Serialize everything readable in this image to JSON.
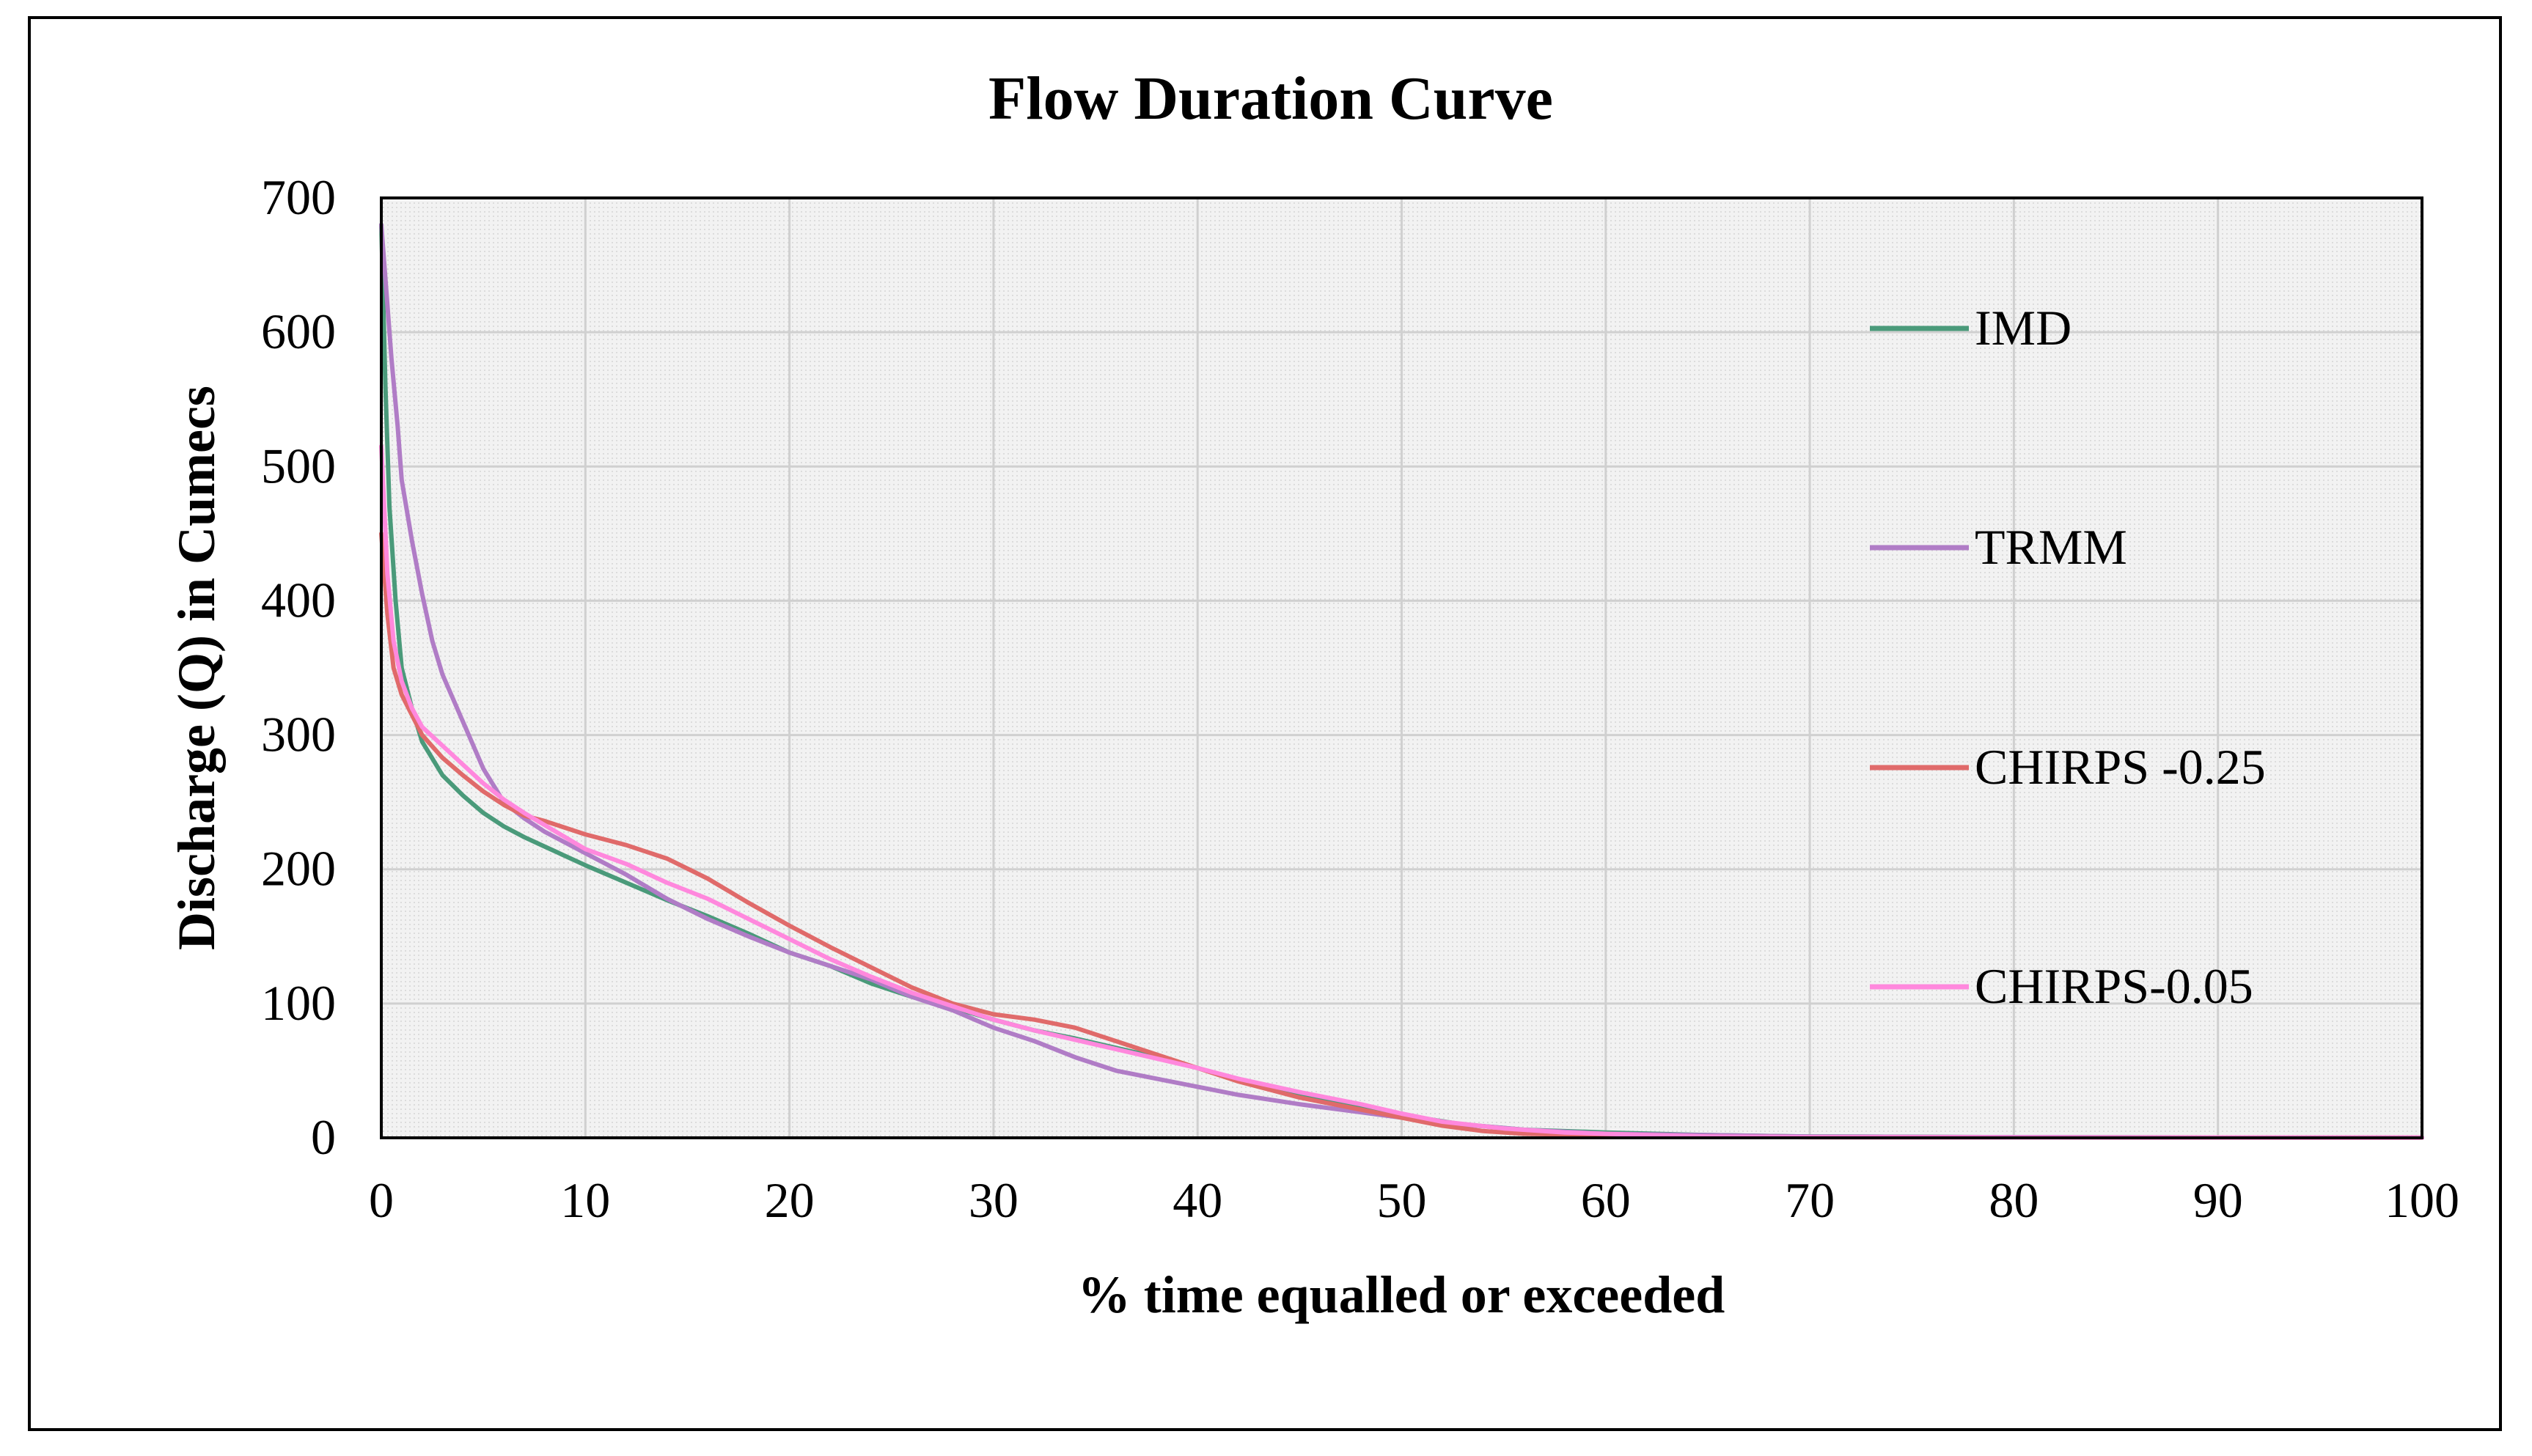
{
  "chart_data": {
    "type": "line",
    "title": "Flow Duration Curve",
    "xlabel": "% time equalled or exceeded",
    "ylabel": "Discharge (Q) in Cumecs",
    "xlim": [
      0,
      100
    ],
    "ylim": [
      0,
      700
    ],
    "xticks": [
      0,
      10,
      20,
      30,
      40,
      50,
      60,
      70,
      80,
      90,
      100
    ],
    "yticks": [
      0,
      100,
      200,
      300,
      400,
      500,
      600,
      700
    ],
    "grid": true,
    "legend_position": "right",
    "series": [
      {
        "name": "IMD",
        "color": "#4a9a7a",
        "x": [
          0,
          0.2,
          0.4,
          0.7,
          1,
          1.5,
          2,
          3,
          4,
          5,
          6,
          7,
          8,
          10,
          12,
          14,
          16,
          18,
          20,
          22,
          24,
          26,
          28,
          30,
          32,
          34,
          36,
          38,
          40,
          42,
          45,
          48,
          50,
          53,
          56,
          60,
          65,
          70,
          80,
          90,
          100
        ],
        "y": [
          680,
          560,
          470,
          400,
          350,
          320,
          295,
          270,
          255,
          242,
          232,
          224,
          217,
          203,
          190,
          177,
          165,
          152,
          138,
          128,
          115,
          105,
          97,
          88,
          80,
          74,
          67,
          60,
          52,
          43,
          33,
          24,
          17,
          10,
          6,
          4,
          2,
          1,
          0.5,
          0.3,
          0.2
        ]
      },
      {
        "name": "TRMM",
        "color": "#b07cc6",
        "x": [
          0,
          0.2,
          0.5,
          0.8,
          1,
          1.5,
          2,
          2.5,
          3,
          4,
          5,
          6,
          7,
          8,
          10,
          12,
          14,
          16,
          18,
          20,
          22,
          24,
          26,
          28,
          30,
          32,
          34,
          36,
          38,
          40,
          42,
          45,
          48,
          50,
          53,
          56,
          60,
          65,
          70,
          80,
          90,
          100
        ],
        "y": [
          680,
          640,
          580,
          530,
          490,
          445,
          405,
          370,
          345,
          310,
          275,
          250,
          238,
          228,
          212,
          196,
          178,
          163,
          150,
          138,
          128,
          118,
          105,
          95,
          82,
          72,
          60,
          50,
          44,
          38,
          32,
          25,
          19,
          15,
          10,
          6,
          3,
          2,
          1,
          0.5,
          0.3,
          0.2
        ]
      },
      {
        "name": "CHIRPS -0.25",
        "color": "#e06a6a",
        "x": [
          0,
          0.3,
          0.6,
          1,
          1.5,
          2,
          3,
          4,
          5,
          6,
          7,
          8,
          10,
          12,
          14,
          16,
          18,
          20,
          22,
          24,
          26,
          28,
          30,
          32,
          34,
          36,
          38,
          40,
          42,
          45,
          48,
          50,
          52,
          54,
          56,
          60,
          65,
          70,
          80,
          90,
          100
        ],
        "y": [
          450,
          390,
          350,
          330,
          315,
          300,
          283,
          270,
          258,
          248,
          240,
          236,
          226,
          218,
          208,
          193,
          175,
          158,
          142,
          127,
          112,
          100,
          92,
          88,
          82,
          72,
          62,
          52,
          42,
          30,
          21,
          15,
          9,
          5,
          3,
          2,
          1,
          0.5,
          0.3,
          0.2,
          0.1
        ]
      },
      {
        "name": "CHIRPS-0.05",
        "color": "#ff88dd",
        "x": [
          0,
          0.3,
          0.6,
          1,
          1.5,
          2,
          3,
          4,
          5,
          6,
          7,
          8,
          10,
          12,
          14,
          16,
          18,
          20,
          22,
          24,
          26,
          28,
          30,
          32,
          34,
          36,
          38,
          40,
          42,
          45,
          48,
          50,
          52,
          55,
          58,
          62,
          65,
          70,
          80,
          90,
          100
        ],
        "y": [
          515,
          420,
          370,
          340,
          320,
          306,
          292,
          278,
          264,
          252,
          242,
          233,
          215,
          204,
          190,
          178,
          163,
          148,
          133,
          120,
          108,
          98,
          88,
          80,
          73,
          66,
          59,
          52,
          44,
          34,
          25,
          18,
          12,
          7,
          4,
          2,
          1,
          0.5,
          0.3,
          0.2,
          0.1
        ]
      }
    ]
  }
}
